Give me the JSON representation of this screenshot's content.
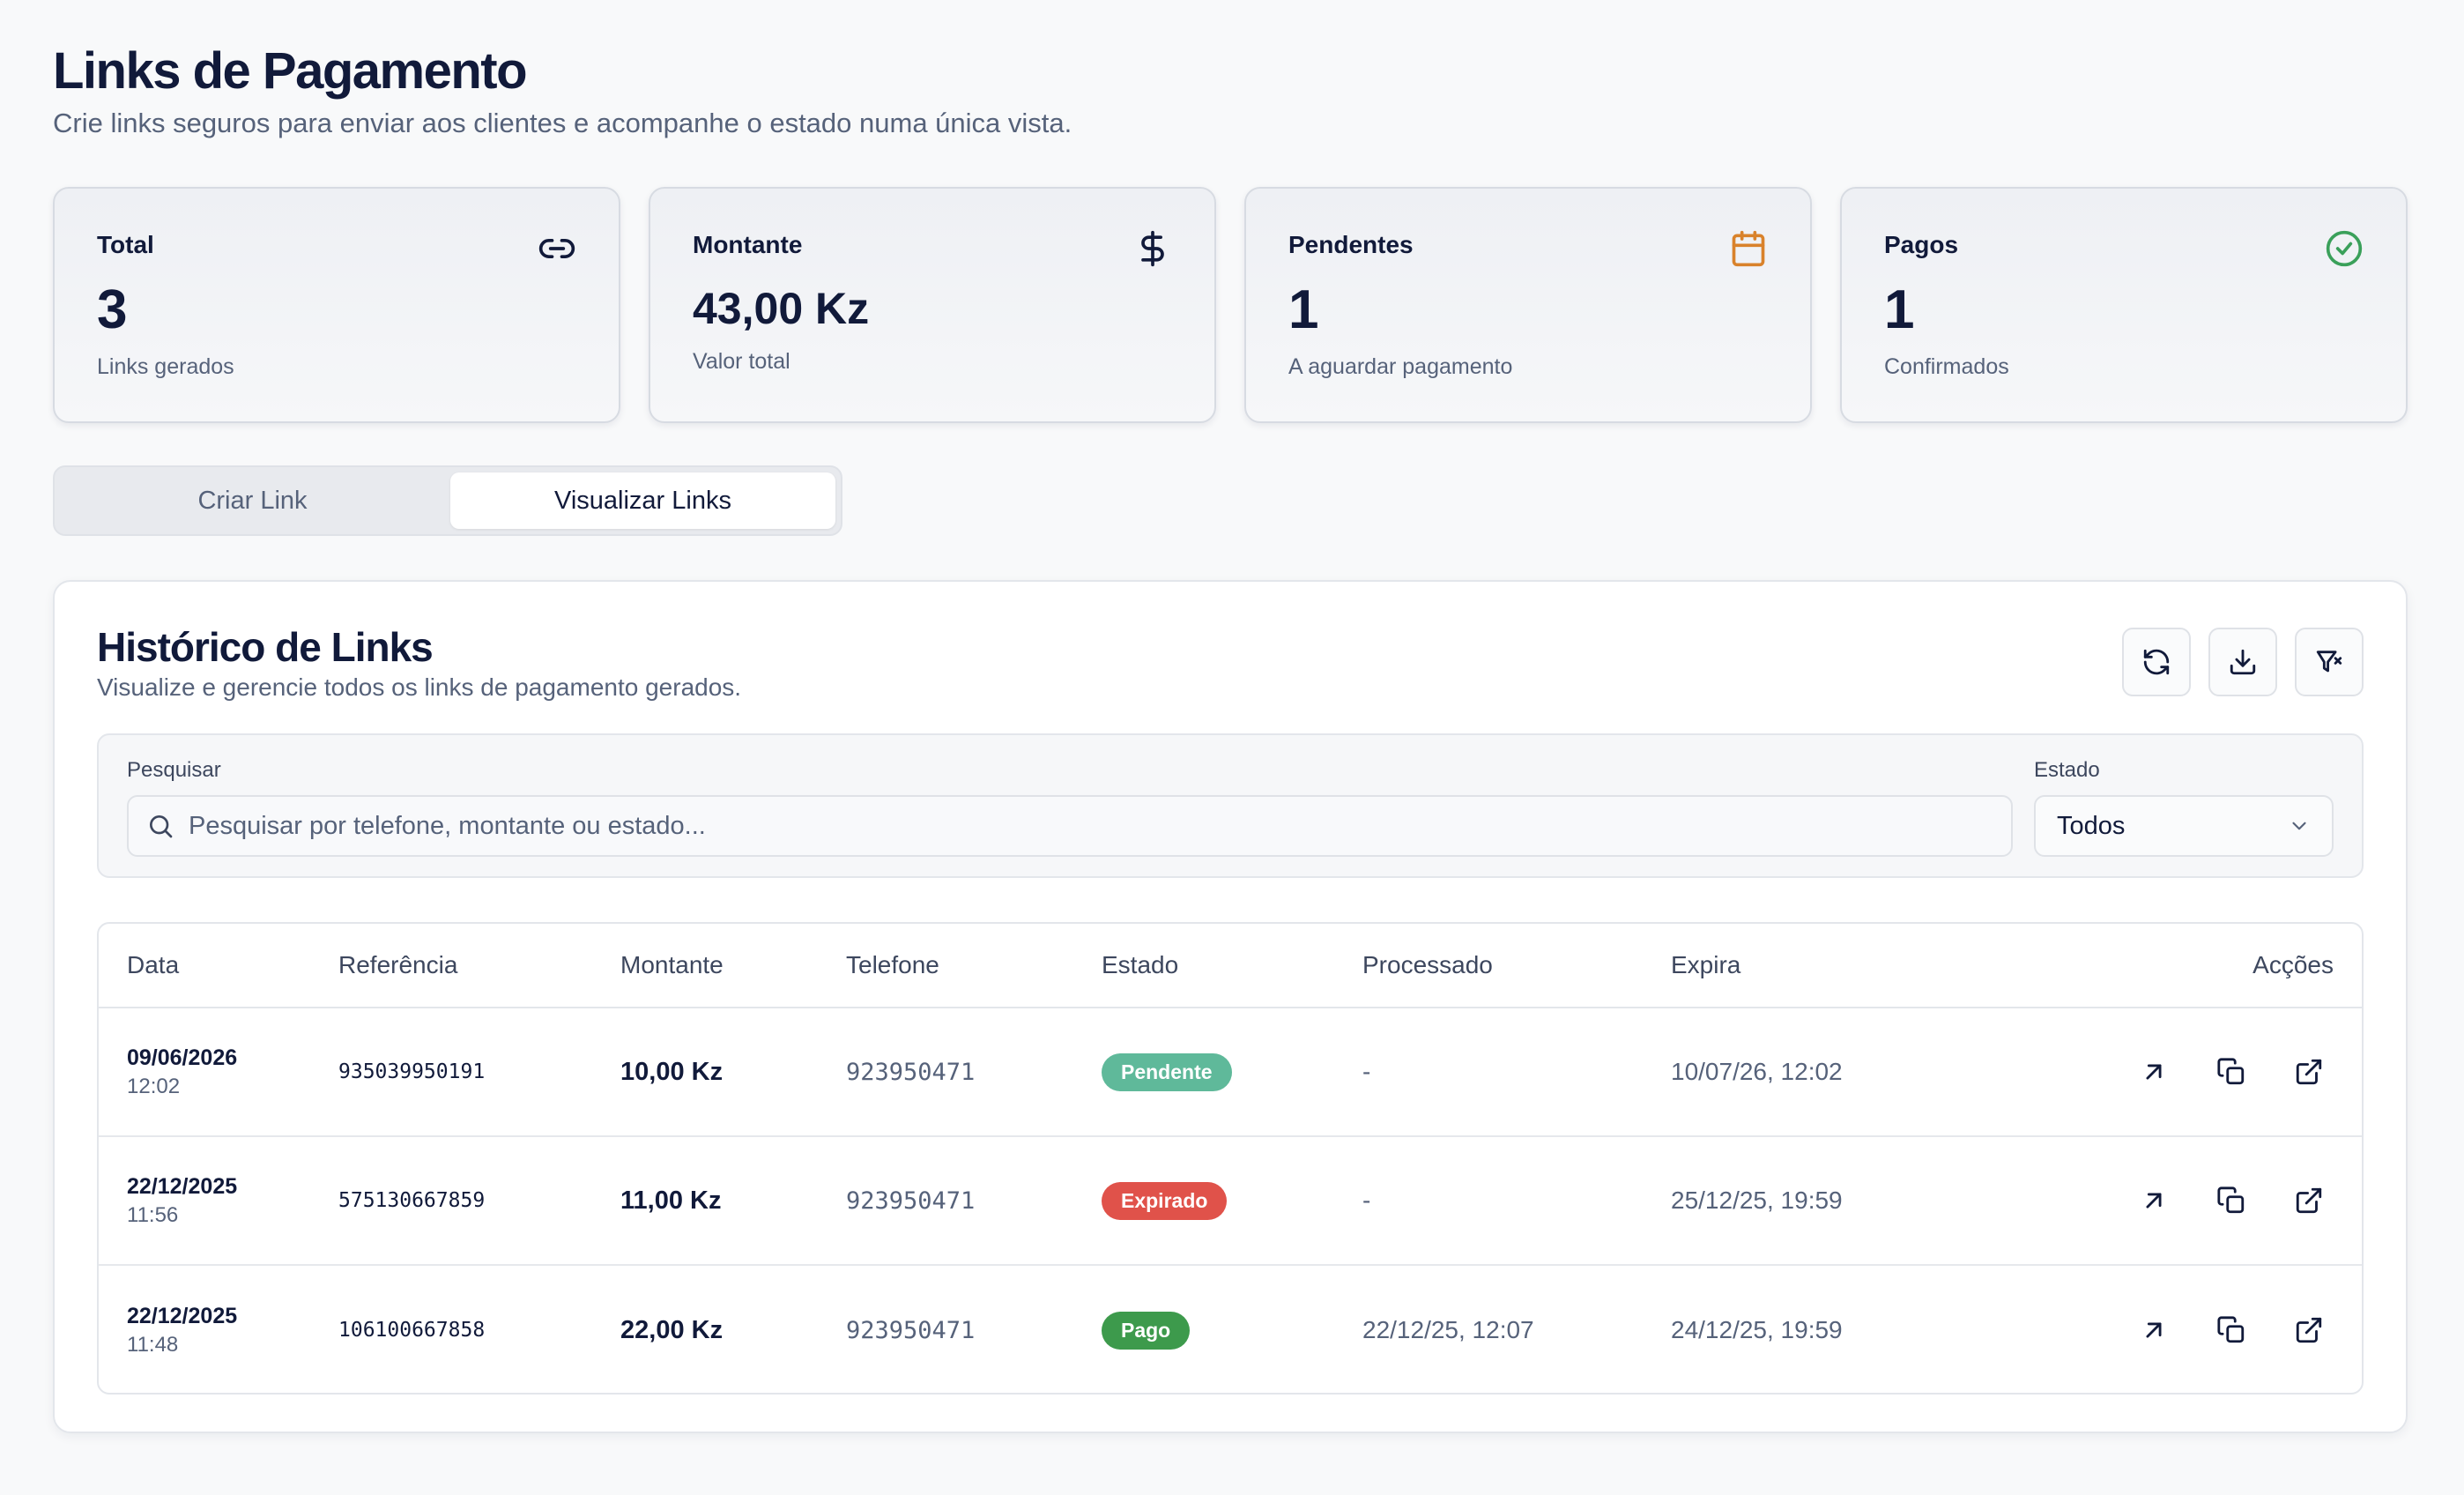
{
  "header": {
    "title": "Links de Pagamento",
    "subtitle": "Crie links seguros para enviar aos clientes e acompanhe o estado numa única vista."
  },
  "stats": [
    {
      "label": "Total",
      "value": "3",
      "caption": "Links gerados",
      "icon": "link-icon"
    },
    {
      "label": "Montante",
      "value": "43,00 Kz",
      "caption": "Valor total",
      "icon": "dollar-icon"
    },
    {
      "label": "Pendentes",
      "value": "1",
      "caption": "A aguardar pagamento",
      "icon": "calendar-icon",
      "icon_color": "#d9822b"
    },
    {
      "label": "Pagos",
      "value": "1",
      "caption": "Confirmados",
      "icon": "check-circle-icon",
      "icon_color": "#3aa05a"
    }
  ],
  "tabs": [
    {
      "label": "Criar Link",
      "active": false
    },
    {
      "label": "Visualizar Links",
      "active": true
    }
  ],
  "history": {
    "title": "Histórico de Links",
    "subtitle": "Visualize e gerencie todos os links de pagamento gerados.",
    "actions": [
      "refresh-icon",
      "download-icon",
      "filter-clear-icon"
    ]
  },
  "filters": {
    "search_label": "Pesquisar",
    "search_placeholder": "Pesquisar por telefone, montante ou estado...",
    "state_label": "Estado",
    "state_value": "Todos"
  },
  "table": {
    "columns": [
      "Data",
      "Referência",
      "Montante",
      "Telefone",
      "Estado",
      "Processado",
      "Expira",
      "Acções"
    ],
    "rows": [
      {
        "date": "09/06/2026",
        "time": "12:02",
        "ref": "935039950191",
        "amount": "10,00 Kz",
        "phone": "923950471",
        "status": "Pendente",
        "status_color": "#5fb99a",
        "processed": "-",
        "expires": "10/07/26, 12:02"
      },
      {
        "date": "22/12/2025",
        "time": "11:56",
        "ref": "575130667859",
        "amount": "11,00 Kz",
        "phone": "923950471",
        "status": "Expirado",
        "status_color": "#e0524a",
        "processed": "-",
        "expires": "25/12/25, 19:59"
      },
      {
        "date": "22/12/2025",
        "time": "11:48",
        "ref": "106100667858",
        "amount": "22,00 Kz",
        "phone": "923950471",
        "status": "Pago",
        "status_color": "#3d9a4c",
        "processed": "22/12/25, 12:07",
        "expires": "24/12/25, 19:59"
      }
    ]
  }
}
